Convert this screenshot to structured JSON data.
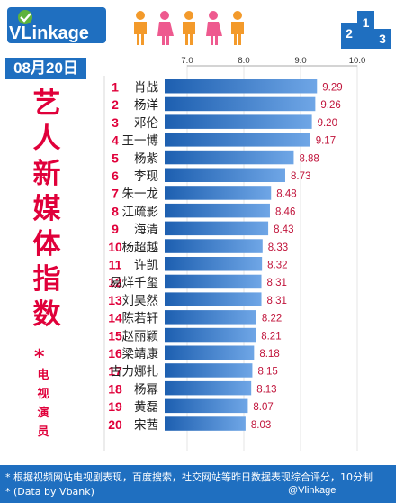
{
  "header": {
    "brand": "VLinkage",
    "date": "08月20日",
    "title_chars": [
      "艺",
      "人",
      "新",
      "媒",
      "体",
      "指",
      "数"
    ],
    "star": "*",
    "subtitle_chars": [
      "电",
      "视",
      "演",
      "员"
    ],
    "podium_numbers": [
      "2",
      "1",
      "3"
    ]
  },
  "colors": {
    "brand_blue": "#1f6fc0",
    "title_red": "#e0003a",
    "rank_red": "#e0003a",
    "value_red": "#c0133a",
    "bar_dark": "#1d5fb0",
    "bar_light": "#6fa6e6",
    "person_orange": "#f39a2b",
    "person_pink": "#ee5a8f"
  },
  "chart_data": {
    "type": "bar",
    "orientation": "horizontal",
    "xlim": [
      7.0,
      10.0
    ],
    "xticks": [
      "7.0",
      "8.0",
      "9.0",
      "10.0"
    ],
    "xtick_values": [
      7.0,
      8.0,
      9.0,
      10.0
    ],
    "ranks": [
      "1",
      "2",
      "3",
      "4",
      "5",
      "6",
      "7",
      "8",
      "9",
      "10",
      "11",
      "12",
      "13",
      "14",
      "15",
      "16",
      "17",
      "18",
      "19",
      "20"
    ],
    "categories": [
      "肖战",
      "杨洋",
      "邓伦",
      "王一博",
      "杨紫",
      "李现",
      "朱一龙",
      "江疏影",
      "海清",
      "杨超越",
      "许凯",
      "易烊千玺",
      "刘昊然",
      "陈若轩",
      "赵丽颖",
      "梁靖康",
      "古力娜扎",
      "杨幂",
      "黄磊",
      "宋茜"
    ],
    "values": [
      9.29,
      9.26,
      9.2,
      9.17,
      8.88,
      8.73,
      8.48,
      8.46,
      8.43,
      8.33,
      8.32,
      8.31,
      8.31,
      8.22,
      8.21,
      8.18,
      8.15,
      8.13,
      8.07,
      8.03
    ],
    "value_labels": [
      "9.29",
      "9.26",
      "9.20",
      "9.17",
      "8.88",
      "8.73",
      "8.48",
      "8.46",
      "8.43",
      "8.33",
      "8.32",
      "8.31",
      "8.31",
      "8.22",
      "8.21",
      "8.18",
      "8.15",
      "8.13",
      "8.07",
      "8.03"
    ]
  },
  "footer": {
    "note1": "* 根据视频网站电视剧表现，百度搜索，社交网站等昨日数据表现综合评分，10分制",
    "note2": "* (Data by Vbank)",
    "watermark": "@Vlinkage"
  }
}
